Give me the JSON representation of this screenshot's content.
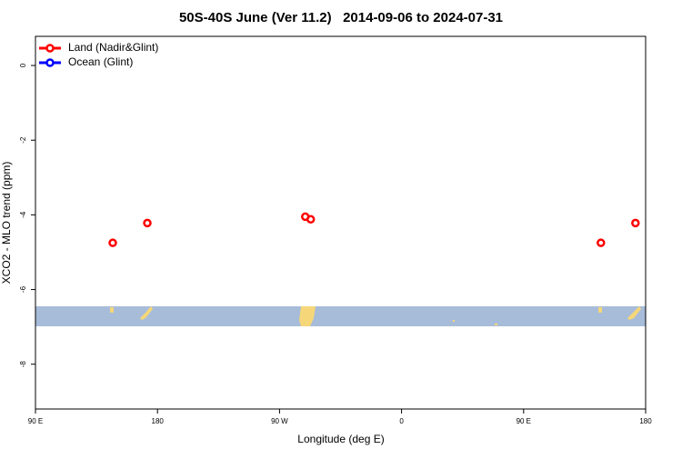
{
  "chart_data": {
    "type": "scatter",
    "title": "50S-40S June (Ver 11.2)   2014-09-06 to 2024-07-31",
    "x_label": "Longitude (deg E)",
    "y_label": "XCO2 - MLO trend (ppm)",
    "xlim": [
      90,
      540
    ],
    "xticks": [
      {
        "value": 90,
        "label": "90 E"
      },
      180,
      {
        "value": 270,
        "label": "90 W"
      },
      {
        "value": 360,
        "label": "0"
      },
      {
        "value": 450,
        "label": "90 E"
      },
      {
        "value": 540,
        "label": "180"
      }
    ],
    "ylim": [
      -9.2,
      0.78
    ],
    "yticks": [
      0,
      -2,
      -4,
      -6,
      -8
    ],
    "legend": "top-left",
    "series": [
      {
        "name": "Land (Nadir&Glint)",
        "color": "#ff0000",
        "x": [
          147,
          172.5,
          289,
          293,
          507,
          532.5
        ],
        "values": [
          -4.75,
          -4.22,
          -4.05,
          -4.12,
          -4.75,
          -4.22
        ]
      },
      {
        "name": "Ocean (Glint)",
        "color": "#0000ff",
        "x": [],
        "values": []
      }
    ]
  }
}
